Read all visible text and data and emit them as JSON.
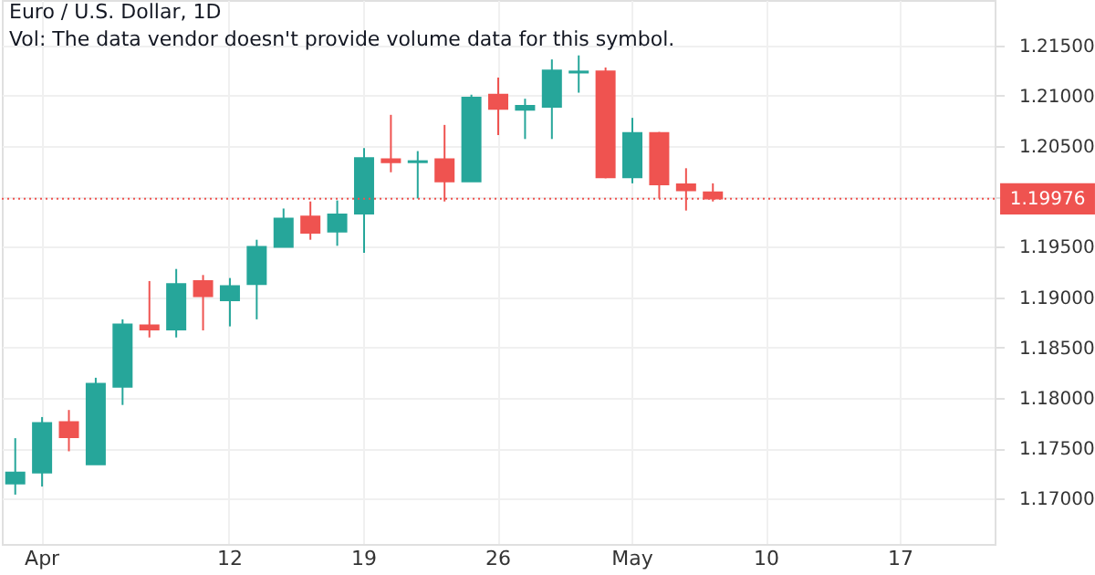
{
  "chart_data": {
    "type": "candlestick",
    "title": "Euro / U.S. Dollar, 1D",
    "annotations": [
      "Vol: The data vendor doesn't provide volume data for this symbol."
    ],
    "categories": [
      null,
      "Apr",
      null,
      null,
      null,
      null,
      null,
      null,
      "12",
      null,
      null,
      null,
      null,
      "19",
      null,
      null,
      null,
      null,
      "26",
      null,
      null,
      null,
      null,
      "May",
      null,
      null,
      null,
      null,
      "10",
      null,
      null,
      null,
      null,
      "17",
      null,
      null,
      null
    ],
    "ohlc": [
      [
        1.1715,
        1.176,
        1.1704,
        1.1726
      ],
      [
        1.1726,
        1.1781,
        1.1712,
        1.1775
      ],
      [
        1.1776,
        1.1788,
        1.1747,
        1.1761
      ],
      [
        1.1734,
        1.182,
        1.1734,
        1.1814
      ],
      [
        1.1811,
        1.1878,
        1.1793,
        1.1873
      ],
      [
        1.1872,
        1.1916,
        1.186,
        1.1868
      ],
      [
        1.1868,
        1.1928,
        1.186,
        1.1913
      ],
      [
        1.1916,
        1.1922,
        1.1867,
        1.1901
      ],
      [
        1.1897,
        1.1919,
        1.1871,
        1.1911
      ],
      [
        1.1913,
        1.1957,
        1.1878,
        1.195
      ],
      [
        1.195,
        1.1988,
        1.195,
        1.1978
      ],
      [
        1.198,
        1.1995,
        1.1957,
        1.1964
      ],
      [
        1.1965,
        1.1996,
        1.1951,
        1.1982
      ],
      [
        1.1983,
        1.2048,
        1.1944,
        1.2038
      ],
      [
        1.2037,
        1.2081,
        1.2024,
        1.2034
      ],
      [
        1.2034,
        1.2045,
        1.1998,
        1.2035
      ],
      [
        1.2037,
        1.2071,
        1.1995,
        1.2015
      ],
      [
        1.2015,
        1.2101,
        1.2015,
        1.2098
      ],
      [
        1.2101,
        1.2118,
        1.2061,
        1.2087
      ],
      [
        1.2086,
        1.2097,
        1.2057,
        1.209
      ],
      [
        1.2089,
        1.2136,
        1.2057,
        1.2125
      ],
      [
        1.2123,
        1.214,
        1.2103,
        1.2124
      ],
      [
        1.2124,
        1.2128,
        1.2018,
        1.2019
      ],
      [
        1.2019,
        1.2078,
        1.2013,
        1.2063
      ],
      [
        1.2063,
        1.2064,
        1.1998,
        1.2012
      ],
      [
        1.2012,
        1.2028,
        1.1986,
        1.2006
      ],
      [
        1.2004,
        1.2013,
        1.1995,
        1.1998
      ],
      null,
      null,
      null,
      null,
      null,
      null,
      null,
      null,
      null,
      null
    ],
    "colors": [
      "#26a69a",
      "#26a69a",
      "#ef5350",
      "#26a69a",
      "#26a69a",
      "#ef5350",
      "#26a69a",
      "#ef5350",
      "#26a69a",
      "#26a69a",
      "#26a69a",
      "#ef5350",
      "#26a69a",
      "#26a69a",
      "#ef5350",
      "#26a69a",
      "#ef5350",
      "#26a69a",
      "#ef5350",
      "#26a69a",
      "#26a69a",
      "#26a69a",
      "#ef5350",
      "#26a69a",
      "#ef5350",
      "#ef5350",
      "#ef5350",
      null,
      null,
      null,
      null,
      null,
      null,
      null,
      null,
      null,
      null
    ],
    "ylim": [
      1.1655,
      1.2195
    ],
    "yticks": [
      {
        "value": 1.17,
        "label": "1.17000"
      },
      {
        "value": 1.175,
        "label": "1.17500"
      },
      {
        "value": 1.18,
        "label": "1.18000"
      },
      {
        "value": 1.185,
        "label": "1.18500"
      },
      {
        "value": 1.19,
        "label": "1.19000"
      },
      {
        "value": 1.195,
        "label": "1.19500"
      },
      {
        "value": 1.2,
        "label": null
      },
      {
        "value": 1.205,
        "label": "1.20500"
      },
      {
        "value": 1.21,
        "label": "1.21000"
      },
      {
        "value": 1.215,
        "label": "1.21500"
      }
    ],
    "ref_lines": [
      {
        "axis": "y",
        "value": 1.19976,
        "label": "1.19976",
        "color": "#ef5350",
        "line_style": "dotted"
      }
    ],
    "grid": true
  }
}
